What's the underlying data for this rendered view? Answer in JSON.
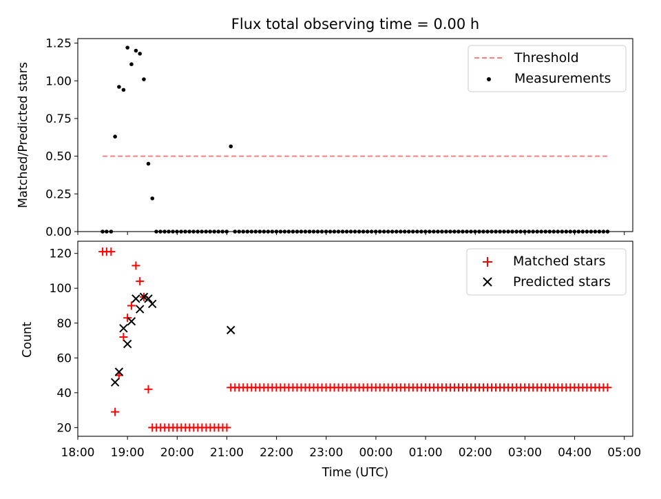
{
  "chart_data": [
    {
      "type": "scatter",
      "title": "Flux total observing time = 0.00 h",
      "ylabel": "Matched/Predicted stars",
      "xlabel": "",
      "ylim": [
        0,
        1.28
      ],
      "yticks": [
        0,
        0.25,
        0.5,
        0.75,
        1.0,
        1.25
      ],
      "ytick_labels": [
        "0.00",
        "0.25",
        "0.50",
        "0.75",
        "1.00",
        "1.25"
      ],
      "legend_position": "top-right",
      "series": [
        {
          "name": "Threshold",
          "kind": "dashed-line",
          "color": "#ff7f7f",
          "x": [
            18.5,
            28.67
          ],
          "y": [
            0.5,
            0.5
          ]
        },
        {
          "name": "Measurements",
          "kind": "dot",
          "color": "#000000",
          "x": [
            18.5,
            18.58,
            18.67,
            18.75,
            18.83,
            18.92,
            19.0,
            19.08,
            19.17,
            19.25,
            19.33,
            19.42,
            19.5,
            21.08
          ],
          "y": [
            0,
            0,
            0,
            0.63,
            0.96,
            0.94,
            1.22,
            1.11,
            1.2,
            1.18,
            1.01,
            0.45,
            0.22,
            0.565
          ],
          "zero_run": {
            "start": 19.58,
            "end": 28.67,
            "step": 0.08333,
            "skip": [
              21.08
            ]
          }
        }
      ]
    },
    {
      "type": "scatter",
      "title": "",
      "ylabel": "Count",
      "xlabel": "Time (UTC)",
      "ylim": [
        15,
        127
      ],
      "yticks": [
        20,
        40,
        60,
        80,
        100,
        120
      ],
      "ytick_labels": [
        "20",
        "40",
        "60",
        "80",
        "100",
        "120"
      ],
      "xlim": [
        18.0,
        29.17
      ],
      "xticks": [
        18,
        19,
        20,
        21,
        22,
        23,
        24,
        25,
        26,
        27,
        28,
        29
      ],
      "xtick_labels": [
        "18:00",
        "19:00",
        "20:00",
        "21:00",
        "22:00",
        "23:00",
        "00:00",
        "01:00",
        "02:00",
        "03:00",
        "04:00",
        "05:00"
      ],
      "legend_position": "top-right",
      "series": [
        {
          "name": "Matched stars",
          "kind": "plus",
          "color": "#ff0000",
          "x": [
            18.5,
            18.58,
            18.67,
            18.75,
            18.83,
            18.92,
            19.0,
            19.08,
            19.17,
            19.25,
            19.33,
            19.42
          ],
          "y": [
            121,
            121,
            121,
            29,
            50,
            72,
            83,
            90,
            113,
            104,
            95,
            42
          ],
          "runs": [
            {
              "start": 19.5,
              "end": 21.0,
              "step": 0.08333,
              "value": 20
            },
            {
              "start": 21.08,
              "end": 28.67,
              "step": 0.08333,
              "value": 43
            }
          ]
        },
        {
          "name": "Predicted stars",
          "kind": "x",
          "color": "#000000",
          "x": [
            18.75,
            18.83,
            18.92,
            19.0,
            19.08,
            19.17,
            19.25,
            19.33,
            19.42,
            19.5,
            21.08
          ],
          "y": [
            46,
            52,
            77,
            68,
            81,
            94,
            88,
            95,
            94,
            91,
            76
          ]
        }
      ]
    }
  ]
}
